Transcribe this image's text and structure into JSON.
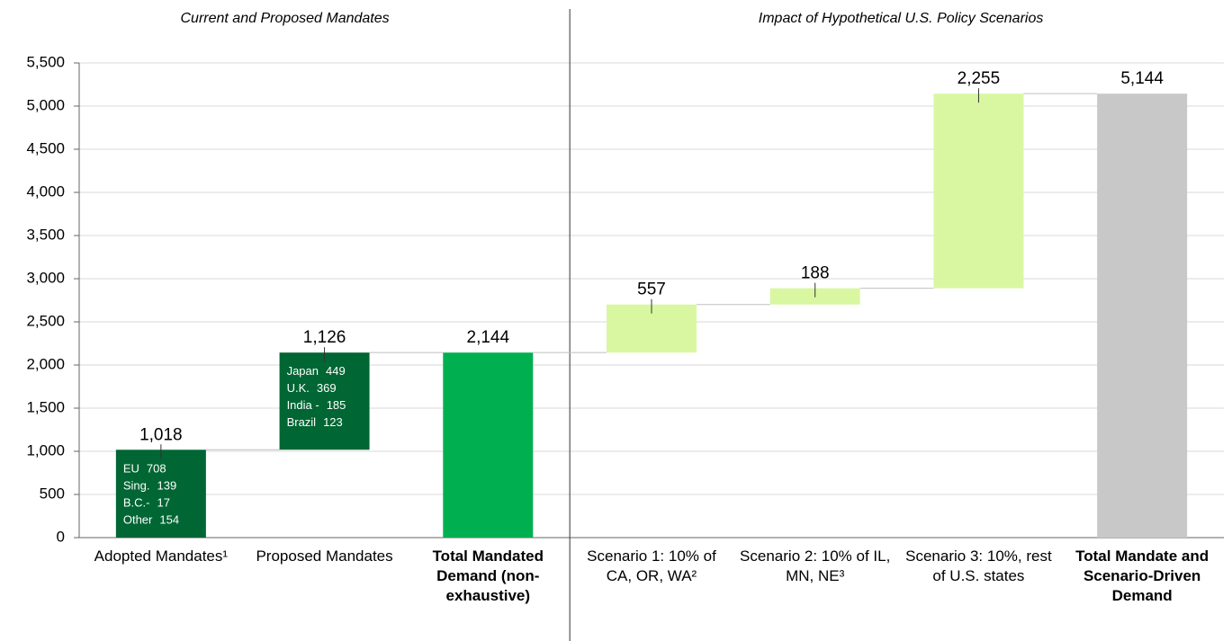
{
  "chart_data": {
    "type": "waterfall",
    "section_titles": [
      "Current and Proposed Mandates",
      "Impact of Hypothetical U.S. Policy Scenarios"
    ],
    "categories": [
      "Adopted Mandates¹",
      "Proposed Mandates",
      "Total Mandated Demand (non-exhaustive)",
      "Scenario 1: 10% of CA, OR, WA²",
      "Scenario 2: 10% of IL, MN, NE³",
      "Scenario 3: 10%, rest of U.S. states",
      "Total Mandate and Scenario-Driven Demand"
    ],
    "kinds": [
      "delta",
      "delta",
      "total",
      "delta",
      "delta",
      "delta",
      "total"
    ],
    "values": [
      1018,
      1126,
      2144,
      557,
      188,
      2255,
      5144
    ],
    "value_labels": [
      "1,018",
      "1,126",
      "2,144",
      "557",
      "188",
      "2,255",
      "5,144"
    ],
    "colors": [
      "#006633",
      "#006633",
      "#00b050",
      "#d9f7a1",
      "#d9f7a1",
      "#d9f7a1",
      "#c8c8c8"
    ],
    "breakdowns": [
      [
        {
          "name": "EU",
          "value": 708
        },
        {
          "name": "Sing.",
          "value": 139
        },
        {
          "name": "B.C.-",
          "value": 17
        },
        {
          "name": "Other",
          "value": 154
        }
      ],
      [
        {
          "name": "Japan",
          "value": 449
        },
        {
          "name": "U.K.",
          "value": 369
        },
        {
          "name": "India -",
          "value": 185
        },
        {
          "name": "Brazil",
          "value": 123
        }
      ],
      null,
      null,
      null,
      null,
      null
    ],
    "ylim": [
      0,
      5500
    ],
    "yticks": [
      0,
      500,
      {
        "value": 1000,
        "label": "1,000"
      },
      {
        "value": 1500,
        "label": "1,500"
      },
      {
        "value": 2000,
        "label": "2,000"
      },
      {
        "value": 2500,
        "label": "2,500"
      },
      {
        "value": 3000,
        "label": "3,000"
      },
      {
        "value": 3500,
        "label": "3,500"
      },
      {
        "value": 4000,
        "label": "4,000"
      },
      {
        "value": 4500,
        "label": "4,500"
      },
      {
        "value": 5000,
        "label": "5,000"
      },
      {
        "value": 5500,
        "label": "5,500"
      }
    ],
    "grid": true
  }
}
